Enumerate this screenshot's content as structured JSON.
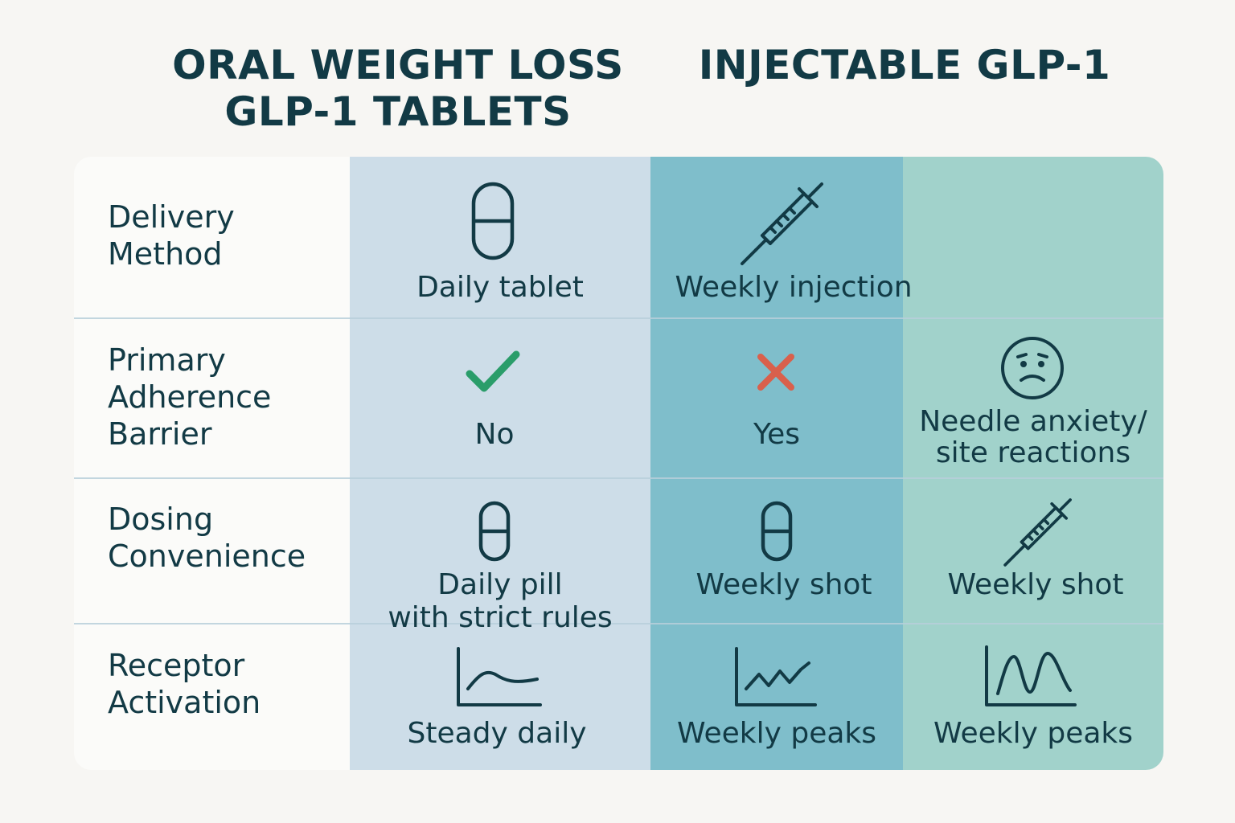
{
  "headers": {
    "oral": [
      "ORAL WEIGHT LOSS",
      "GLP-1 TABLETS"
    ],
    "injectable": [
      "INJECTABLE GLP-1"
    ]
  },
  "rows": [
    {
      "label": [
        "Delivery",
        "Method"
      ],
      "cells": [
        {
          "icon": "capsule-icon",
          "text": [
            "Daily tablet"
          ]
        },
        {
          "icon": "syringe-icon",
          "text": [
            "Weekly injection"
          ]
        },
        {
          "icon": "",
          "text": []
        }
      ]
    },
    {
      "label": [
        "Primary",
        "Adherence",
        "Barrier"
      ],
      "cells": [
        {
          "icon": "checkmark-icon",
          "text": [
            "No"
          ]
        },
        {
          "icon": "cross-icon",
          "text": [
            "Yes"
          ]
        },
        {
          "icon": "sad-face-icon",
          "text": [
            "Needle anxiety/",
            "site reactions"
          ]
        }
      ]
    },
    {
      "label": [
        "Dosing",
        "Convenience"
      ],
      "cells": [
        {
          "icon": "capsule-icon",
          "text": [
            "Daily pill",
            "with strict rules"
          ]
        },
        {
          "icon": "capsule-icon",
          "text": [
            "Weekly shot"
          ]
        },
        {
          "icon": "syringe-icon",
          "text": [
            "Weekly shot"
          ]
        }
      ]
    },
    {
      "label": [
        "Receptor",
        "Activation"
      ],
      "cells": [
        {
          "icon": "steady-curve-chart-icon",
          "text": [
            "Steady daily"
          ]
        },
        {
          "icon": "zigzag-chart-icon",
          "text": [
            "Weekly peaks"
          ]
        },
        {
          "icon": "double-peak-chart-icon",
          "text": [
            "Weekly peaks"
          ]
        }
      ]
    }
  ],
  "colors": {
    "text": "#123a45",
    "oral_column": "#cddde8",
    "injectable_column": "#7fbecb",
    "third_column": "#a1d2cb",
    "check": "#2a9d6a",
    "cross": "#d9604c"
  }
}
